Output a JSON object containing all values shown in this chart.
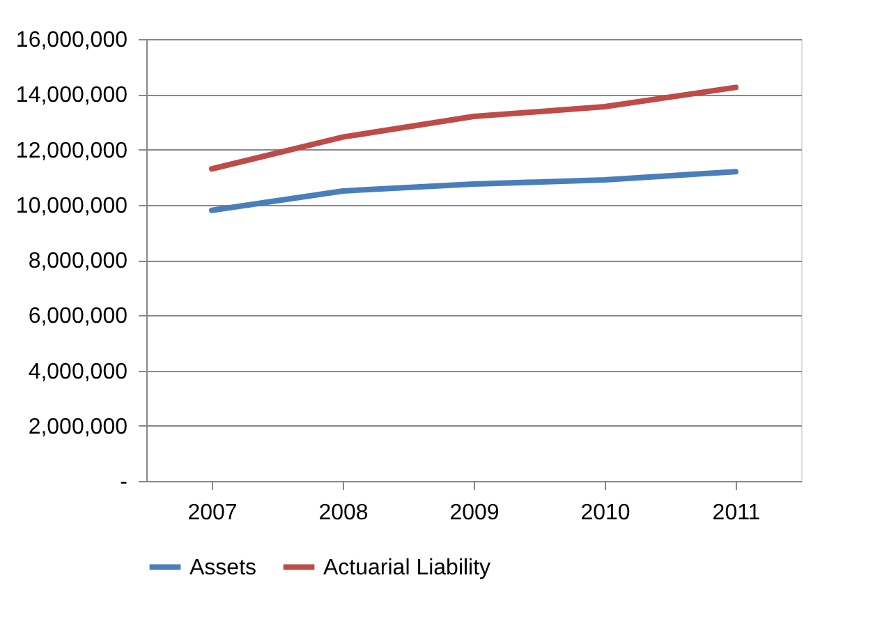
{
  "chart_data": {
    "type": "line",
    "categories": [
      "2007",
      "2008",
      "2009",
      "2010",
      "2011"
    ],
    "series": [
      {
        "name": "Assets",
        "color": "#4a7ebb",
        "values": [
          9800000,
          10500000,
          10750000,
          10900000,
          11200000
        ]
      },
      {
        "name": "Actuarial Liability",
        "color": "#be4b48",
        "values": [
          11300000,
          12450000,
          13200000,
          13550000,
          14250000
        ]
      }
    ],
    "ylim": [
      0,
      16000000
    ],
    "yticks": [
      {
        "value": 0,
        "label": "-"
      },
      {
        "value": 2000000,
        "label": "2,000,000"
      },
      {
        "value": 4000000,
        "label": "4,000,000"
      },
      {
        "value": 6000000,
        "label": "6,000,000"
      },
      {
        "value": 8000000,
        "label": "8,000,000"
      },
      {
        "value": 10000000,
        "label": "10,000,000"
      },
      {
        "value": 12000000,
        "label": "12,000,000"
      },
      {
        "value": 14000000,
        "label": "14,000,000"
      },
      {
        "value": 16000000,
        "label": "16,000,000"
      }
    ],
    "grid": "y",
    "legend": "bottom",
    "marker": "none",
    "line_style": "solid"
  }
}
